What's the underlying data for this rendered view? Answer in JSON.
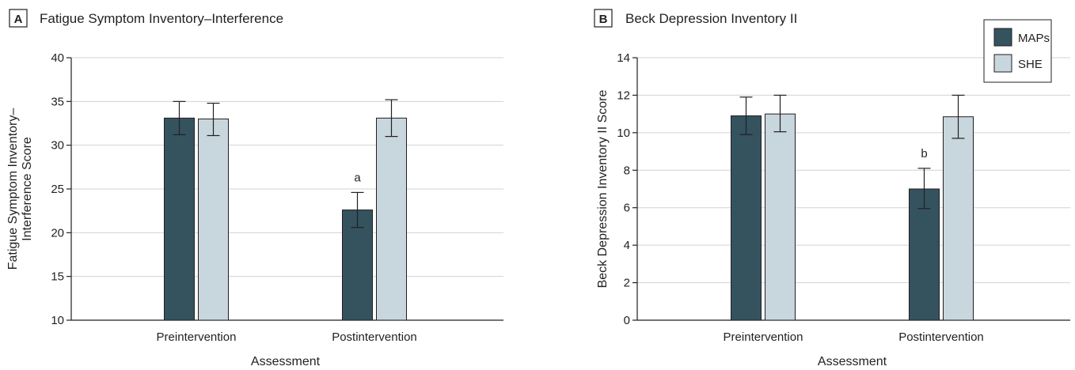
{
  "colors": {
    "maps": "#34535f",
    "she": "#c8d6dd"
  },
  "legend": {
    "placement": "top-right",
    "items": [
      {
        "label": "MAPs",
        "color": "#34535f"
      },
      {
        "label": "SHE",
        "color": "#c8d6dd"
      }
    ]
  },
  "chart_data": [
    {
      "type": "bar",
      "panel": "A",
      "title": "Fatigue Symptom Inventory–Interference",
      "xlabel": "Assessment",
      "ylabel": "Fatigue Symptom Inventory–Interference Score",
      "ylabel_lines": [
        "Fatigue Symptom Inventory–",
        "Interference Score"
      ],
      "ylim": [
        10,
        40
      ],
      "yticks": [
        "10",
        "15",
        "20",
        "25",
        "30",
        "35",
        "40"
      ],
      "grid": true,
      "categories": [
        "Preintervention",
        "Postintervention"
      ],
      "series": [
        {
          "name": "MAPs",
          "values": [
            33.1,
            22.6
          ],
          "error_low": [
            31.2,
            20.6
          ],
          "error_high": [
            35.0,
            24.6
          ]
        },
        {
          "name": "SHE",
          "values": [
            33.0,
            33.1
          ],
          "error_low": [
            31.1,
            31.0
          ],
          "error_high": [
            34.8,
            35.2
          ]
        }
      ],
      "annotations": [
        {
          "text": "a",
          "category": 1,
          "series": 0
        }
      ]
    },
    {
      "type": "bar",
      "panel": "B",
      "title": "Beck Depression Inventory II",
      "xlabel": "Assessment",
      "ylabel": "Beck Depression Inventory II Score",
      "ylabel_lines": [
        "Beck Depression Inventory II Score"
      ],
      "ylim": [
        0,
        14
      ],
      "yticks": [
        "0",
        "2",
        "4",
        "6",
        "8",
        "10",
        "12",
        "14"
      ],
      "grid": true,
      "categories": [
        "Preintervention",
        "Postintervention"
      ],
      "series": [
        {
          "name": "MAPs",
          "values": [
            10.9,
            7.0
          ],
          "error_low": [
            9.9,
            5.95
          ],
          "error_high": [
            11.9,
            8.1
          ]
        },
        {
          "name": "SHE",
          "values": [
            11.0,
            10.85
          ],
          "error_low": [
            10.05,
            9.7
          ],
          "error_high": [
            12.0,
            12.0
          ]
        }
      ],
      "annotations": [
        {
          "text": "b",
          "category": 1,
          "series": 0
        }
      ]
    }
  ]
}
